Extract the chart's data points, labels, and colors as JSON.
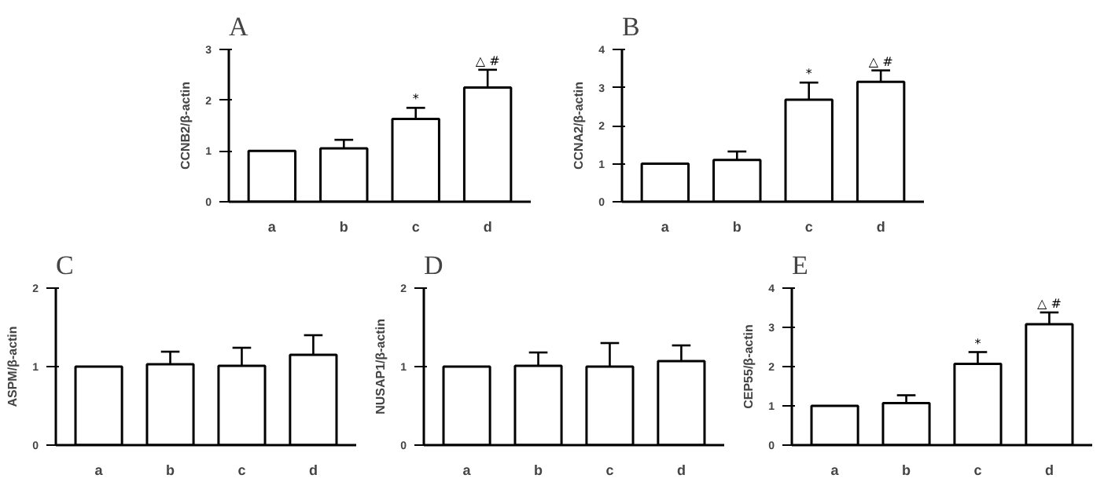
{
  "chart_data": [
    {
      "type": "bar",
      "title": "A",
      "ylabel": "CCNB2/β-actin",
      "categories": [
        "a",
        "b",
        "c",
        "d"
      ],
      "values": [
        1,
        1.05,
        1.63,
        2.25
      ],
      "errors": [
        null,
        0.17,
        0.22,
        0.35
      ],
      "color": "#ffffff",
      "ylim": [
        0,
        3
      ],
      "yticks": [
        0,
        1,
        2,
        3
      ],
      "grid": false,
      "annotations": [
        {
          "text": "*",
          "x": "c",
          "y": 1.63
        },
        {
          "text": "△ #",
          "x": "d",
          "y": 2.25
        }
      ]
    },
    {
      "type": "bar",
      "title": "B",
      "ylabel": "CCNA2/β-actin",
      "categories": [
        "a",
        "b",
        "c",
        "d"
      ],
      "values": [
        1,
        1.1,
        2.68,
        3.15
      ],
      "errors": [
        null,
        0.22,
        0.45,
        0.3
      ],
      "color": "#ffffff",
      "ylim": [
        0,
        4
      ],
      "yticks": [
        0,
        1,
        2,
        3,
        4
      ],
      "grid": false,
      "annotations": [
        {
          "text": "*",
          "x": "c",
          "y": 2.68
        },
        {
          "text": "△ #",
          "x": "d",
          "y": 3.15
        }
      ]
    },
    {
      "type": "bar",
      "title": "C",
      "ylabel": "ASPM/β-actin",
      "categories": [
        "a",
        "b",
        "c",
        "d"
      ],
      "values": [
        1,
        1.03,
        1.01,
        1.15
      ],
      "errors": [
        null,
        0.16,
        0.23,
        0.25
      ],
      "color": "#ffffff",
      "ylim": [
        0,
        2
      ],
      "yticks": [
        0,
        1,
        2
      ],
      "grid": false
    },
    {
      "type": "bar",
      "title": "D",
      "ylabel": "NUSAP1/β-actin",
      "categories": [
        "a",
        "b",
        "c",
        "d"
      ],
      "values": [
        1,
        1.01,
        1.0,
        1.07
      ],
      "errors": [
        null,
        0.17,
        0.3,
        0.2
      ],
      "color": "#ffffff",
      "ylim": [
        0,
        2
      ],
      "yticks": [
        0,
        1,
        2
      ],
      "grid": false
    },
    {
      "type": "bar",
      "title": "E",
      "ylabel": "CEP55/β-actin",
      "categories": [
        "a",
        "b",
        "c",
        "d"
      ],
      "values": [
        1,
        1.07,
        2.07,
        3.08
      ],
      "errors": [
        null,
        0.2,
        0.3,
        0.3
      ],
      "color": "#ffffff",
      "ylim": [
        0,
        4
      ],
      "yticks": [
        0,
        1,
        2,
        3,
        4
      ],
      "grid": false,
      "annotations": [
        {
          "text": "*",
          "x": "c",
          "y": 2.07
        },
        {
          "text": "△ #",
          "x": "d",
          "y": 3.08
        }
      ]
    }
  ]
}
